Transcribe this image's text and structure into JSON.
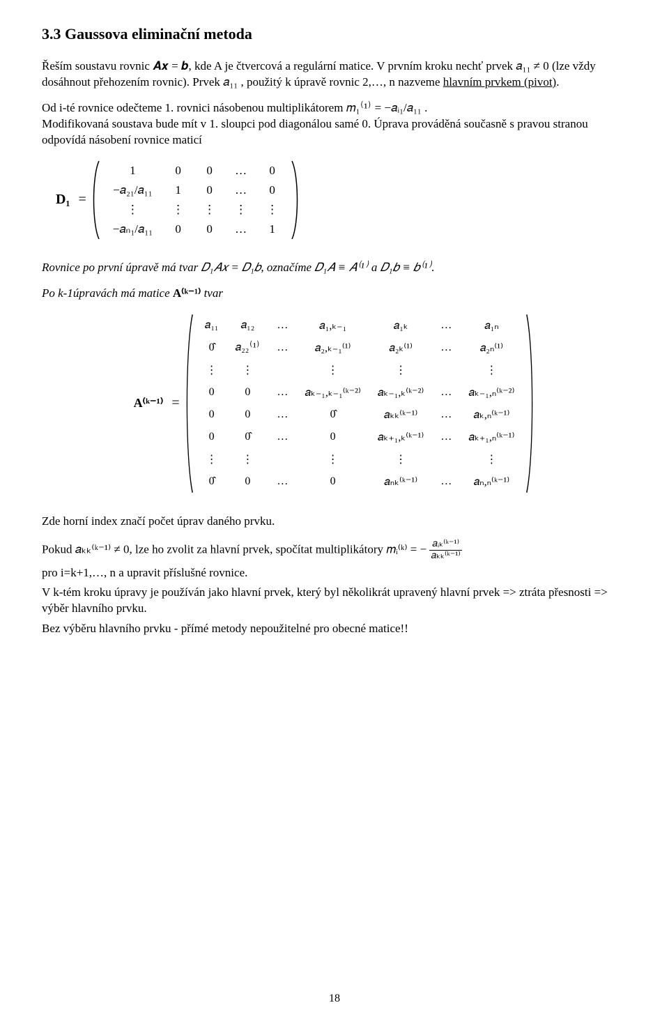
{
  "section": {
    "number": "3.3",
    "title": "Gaussova eliminační metoda"
  },
  "para1": "Řeším soustavu rovnic  𝑨𝒙 = 𝒃, kde A je čtvercová a regulární matice. V prvním kroku nechť prvek 𝑎₁₁ ≠ 0  (lze vždy dosáhnout přehozením rovnic). Prvek  𝑎₁₁   , použitý k úpravě rovnic 2,…, n nazveme ",
  "para1_under": "hlavním prvkem (pivot)",
  "para1_end": ".",
  "para2a": "Od i-té rovnice odečteme 1. rovnici násobenou multiplikátorem ",
  "para2_m": "𝑚₁⁽¹⁾ = −𝑎ᵢ₁/𝑎₁₁ .",
  "para2b": "Modifikovaná soustava bude mít v 1. sloupci pod diagonálou samé 0. Úprava prováděná současně s pravou stranou odpovídá násobení rovnice maticí",
  "matrix1": {
    "label": "D₁",
    "background_color": "#ffffff",
    "rows": [
      [
        "1",
        "0",
        "0",
        "…",
        "0"
      ],
      [
        "−𝑎₂₁/𝑎₁₁",
        "1",
        "0",
        "…",
        "0"
      ],
      [
        "⋮",
        "⋮",
        "⋮",
        "⋮",
        "⋮"
      ],
      [
        "−𝑎ₙ₁/𝑎₁₁",
        "0",
        "0",
        "…",
        "1"
      ]
    ]
  },
  "para3_it": "Rovnice po první úpravě má tvar 𝐷₁𝐴𝑥 = 𝐷₁𝑏, označíme 𝐷₁𝐴 ≡ 𝐴⁽¹⁾  a 𝐷₁𝑏 ≡ 𝑏⁽¹⁾.",
  "para4_it_a": "Po k-1úpravách má matice ",
  "para4_bold": "A⁽ᵏ⁻¹⁾",
  "para4_it_b": " tvar",
  "matrix2": {
    "label": "A⁽ᵏ⁻¹⁾",
    "rows": [
      [
        "𝑎₁₁",
        "𝑎₁₂",
        "…",
        "𝑎₁,ₖ₋₁",
        "𝑎₁ₖ",
        "…",
        "𝑎₁ₙ"
      ],
      [
        "0̂",
        "𝑎₂₂⁽¹⁾",
        "…",
        "𝑎₂,ₖ₋₁⁽¹⁾",
        "𝑎₂ₖ⁽¹⁾",
        "…",
        "𝑎₂ₙ⁽¹⁾"
      ],
      [
        "⋮",
        "⋮",
        " ",
        "⋮",
        "⋮",
        " ",
        "⋮"
      ],
      [
        "0",
        "0",
        "…",
        "𝑎ₖ₋₁,ₖ₋₁⁽ᵏ⁻²⁾",
        "𝑎ₖ₋₁,ₖ⁽ᵏ⁻²⁾",
        "…",
        "𝑎ₖ₋₁,ₙ⁽ᵏ⁻²⁾"
      ],
      [
        "0",
        "0",
        "…",
        "0̂",
        "𝑎ₖₖ⁽ᵏ⁻¹⁾",
        "…",
        "𝑎ₖ,ₙ⁽ᵏ⁻¹⁾"
      ],
      [
        "0",
        "0̂",
        "…",
        "0",
        "𝑎ₖ₊₁,ₖ⁽ᵏ⁻¹⁾",
        "…",
        "𝑎ₖ₊₁,ₙ⁽ᵏ⁻¹⁾"
      ],
      [
        "⋮",
        "⋮",
        " ",
        "⋮",
        "⋮",
        " ",
        "⋮"
      ],
      [
        "0̂",
        "0",
        "…",
        "0",
        "𝑎ₙₖ⁽ᵏ⁻¹⁾",
        "…",
        "𝑎ₙ,ₙ⁽ᵏ⁻¹⁾"
      ]
    ]
  },
  "para5": "Zde horní index značí počet úprav daného prvku.",
  "para6": {
    "lead": "Pokud 𝑎ₖₖ⁽ᵏ⁻¹⁾ ≠ 0,  lze ho zvolit za hlavní prvek, spočítat multiplikátory 𝑚ᵢ⁽ᵏ⁾ = −",
    "frac_num": "𝑎ᵢₖ⁽ᵏ⁻¹⁾",
    "frac_den": "𝑎ₖₖ⁽ᵏ⁻¹⁾"
  },
  "para7": "pro i=k+1,…, n a upravit příslušné rovnice.",
  "para8": "V k-tém kroku úpravy je používán jako hlavní prvek, který byl několikrát upravený   hlavní prvek => ztráta přesnosti => výběr hlavního prvku.",
  "para9": "Bez výběru hlavního prvku - přímé metody nepoužitelné pro obecné matice!!",
  "page_number": "18"
}
